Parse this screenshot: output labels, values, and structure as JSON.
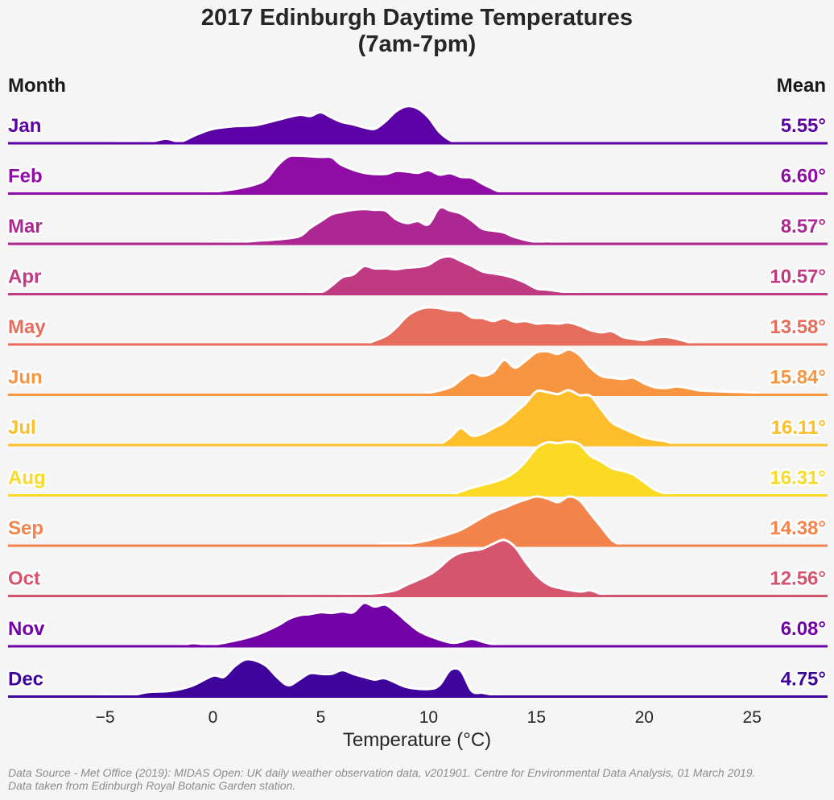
{
  "title_line1": "2017 Edinburgh Daytime Temperatures",
  "title_line2": "(7am-7pm)",
  "month_header": "Month",
  "mean_header": "Mean",
  "footnote_line1": "Data Source - Met Office (2019): MIDAS Open: UK daily weather observation data, v201901. Centre for Environmental Data Analysis, 01 March 2019.",
  "footnote_line2": "Data taken from Edinburgh Royal Botanic Garden station.",
  "chart_data": {
    "type": "area",
    "subtype": "ridgeline-kde",
    "xlabel": "Temperature (°C)",
    "xlim": [
      -9.5,
      28.5
    ],
    "xticks": [
      -5,
      0,
      5,
      10,
      15,
      20,
      25
    ],
    "xtick_labels": [
      "−5",
      "0",
      "5",
      "10",
      "15",
      "20",
      "25"
    ],
    "grid": false,
    "series": [
      {
        "name": "Jan",
        "mean_label": "5.55°",
        "color": "#5c01a6",
        "x": [
          -5.2,
          -4,
          -3,
          -2.2,
          -1.5,
          -0.8,
          0,
          1,
          2,
          3,
          4,
          4.5,
          5,
          5.5,
          6,
          6.5,
          7,
          7.5,
          8,
          8.5,
          9,
          9.5,
          10,
          10.5,
          11,
          11.5
        ],
        "density": [
          0,
          0.04,
          0.03,
          0.12,
          0.05,
          0.22,
          0.38,
          0.45,
          0.48,
          0.62,
          0.75,
          0.72,
          0.82,
          0.68,
          0.56,
          0.5,
          0.42,
          0.38,
          0.58,
          0.85,
          0.98,
          0.92,
          0.68,
          0.3,
          0.08,
          0
        ]
      },
      {
        "name": "Feb",
        "mean_label": "6.60°",
        "color": "#8f0da4",
        "x": [
          -0.8,
          0,
          1,
          2,
          2.5,
          3,
          3.5,
          4,
          5,
          5.5,
          6,
          7,
          8,
          8.5,
          9,
          9.5,
          10,
          10.5,
          11,
          11.5,
          12,
          12.5,
          13,
          13.5
        ],
        "density": [
          0,
          0.05,
          0.12,
          0.25,
          0.4,
          0.75,
          0.98,
          1.0,
          0.97,
          0.96,
          0.75,
          0.55,
          0.52,
          0.6,
          0.58,
          0.55,
          0.62,
          0.5,
          0.54,
          0.44,
          0.42,
          0.26,
          0.12,
          0
        ]
      },
      {
        "name": "Mar",
        "mean_label": "8.57°",
        "color": "#ad2793",
        "x": [
          -0.5,
          0,
          1,
          2,
          3,
          4,
          4.5,
          5,
          5.5,
          6,
          6.5,
          7,
          7.5,
          8,
          8.5,
          9,
          9.5,
          10,
          10.5,
          11,
          11.5,
          12,
          12.5,
          13,
          13.5,
          14,
          15,
          15.5,
          16,
          16.5
        ],
        "density": [
          0,
          0.02,
          0.04,
          0.08,
          0.12,
          0.2,
          0.42,
          0.6,
          0.78,
          0.85,
          0.9,
          0.92,
          0.9,
          0.88,
          0.65,
          0.55,
          0.6,
          0.52,
          0.95,
          0.88,
          0.8,
          0.62,
          0.4,
          0.35,
          0.3,
          0.18,
          0.05,
          0.07,
          0.02,
          0
        ]
      },
      {
        "name": "Apr",
        "mean_label": "10.57°",
        "color": "#c03a83",
        "x": [
          4,
          5,
          5.5,
          6,
          6.5,
          7,
          7.5,
          8,
          8.5,
          9,
          9.5,
          10,
          10.5,
          11,
          11.5,
          12,
          12.5,
          13,
          13.5,
          14,
          14.5,
          15,
          15.5,
          16,
          16.5,
          17
        ],
        "density": [
          0,
          0.05,
          0.22,
          0.45,
          0.52,
          0.74,
          0.68,
          0.68,
          0.66,
          0.7,
          0.72,
          0.78,
          0.95,
          1.0,
          0.88,
          0.75,
          0.6,
          0.55,
          0.5,
          0.42,
          0.3,
          0.15,
          0.12,
          0.08,
          0.04,
          0
        ]
      },
      {
        "name": "May",
        "mean_label": "13.58°",
        "color": "#e66c5c",
        "x": [
          7,
          8,
          8.5,
          9,
          9.5,
          10,
          10.5,
          11,
          11.5,
          12,
          12.5,
          13,
          13.5,
          14,
          14.5,
          15,
          15.5,
          16,
          16.5,
          17,
          17.5,
          18,
          18.5,
          19,
          19.5,
          20,
          20.5,
          21,
          21.5,
          22,
          22.5
        ],
        "density": [
          0,
          0.22,
          0.45,
          0.75,
          0.92,
          0.98,
          0.96,
          0.9,
          0.88,
          0.72,
          0.7,
          0.62,
          0.7,
          0.6,
          0.62,
          0.55,
          0.57,
          0.55,
          0.58,
          0.5,
          0.38,
          0.32,
          0.35,
          0.2,
          0.15,
          0.12,
          0.18,
          0.2,
          0.15,
          0.07,
          0
        ]
      },
      {
        "name": "Jun",
        "mean_label": "15.84°",
        "color": "#f89540",
        "x": [
          9.3,
          10,
          11,
          11.5,
          12,
          12.5,
          13,
          13.5,
          14,
          14.5,
          15,
          15.5,
          16,
          16.5,
          17,
          17.5,
          18,
          18.5,
          19,
          19.5,
          20,
          20.5,
          21,
          21.5,
          22,
          22.5,
          23,
          24,
          25,
          25.5
        ],
        "density": [
          0,
          0.05,
          0.2,
          0.4,
          0.58,
          0.5,
          0.6,
          0.92,
          0.72,
          0.9,
          1.12,
          1.15,
          1.08,
          1.2,
          1.05,
          0.72,
          0.5,
          0.45,
          0.42,
          0.45,
          0.3,
          0.2,
          0.18,
          0.22,
          0.18,
          0.12,
          0.1,
          0.08,
          0.06,
          0
        ]
      },
      {
        "name": "Jul",
        "mean_label": "16.11°",
        "color": "#febd2a",
        "x": [
          10.5,
          11,
          11.5,
          12,
          12.5,
          13,
          13.5,
          14,
          14.5,
          15,
          15.5,
          16,
          16.5,
          17,
          17.5,
          18,
          18.5,
          19,
          19.5,
          20,
          20.5,
          21,
          21.5
        ],
        "density": [
          0,
          0.2,
          0.45,
          0.25,
          0.3,
          0.45,
          0.6,
          0.85,
          1.1,
          1.42,
          1.4,
          1.35,
          1.45,
          1.32,
          1.3,
          0.95,
          0.6,
          0.45,
          0.32,
          0.2,
          0.14,
          0.1,
          0
        ]
      },
      {
        "name": "Aug",
        "mean_label": "16.31°",
        "color": "#fada24",
        "x": [
          11,
          12,
          13,
          13.5,
          14,
          14.5,
          15,
          15.5,
          16,
          16.5,
          17,
          17.5,
          18,
          18.5,
          19,
          19.5,
          20,
          20.5,
          21,
          21.5
        ],
        "density": [
          0,
          0.2,
          0.35,
          0.45,
          0.62,
          0.9,
          1.25,
          1.4,
          1.38,
          1.42,
          1.35,
          1.05,
          0.9,
          0.72,
          0.65,
          0.55,
          0.35,
          0.15,
          0.05,
          0
        ]
      },
      {
        "name": "Sep",
        "mean_label": "14.38°",
        "color": "#f2844b",
        "x": [
          7.5,
          8,
          9,
          10,
          11,
          11.5,
          12,
          12.5,
          13,
          13.5,
          14,
          14.5,
          15,
          15.5,
          16,
          16.5,
          17,
          17.5,
          18,
          18.5,
          19
        ],
        "density": [
          0,
          0.06,
          0.05,
          0.15,
          0.32,
          0.42,
          0.58,
          0.75,
          0.9,
          1.0,
          1.12,
          1.22,
          1.3,
          1.25,
          1.15,
          1.3,
          1.2,
          0.85,
          0.5,
          0.15,
          0
        ]
      },
      {
        "name": "Oct",
        "mean_label": "12.56°",
        "color": "#d5546e",
        "x": [
          3,
          5,
          7,
          8,
          8.5,
          9,
          10,
          10.5,
          11,
          11.5,
          12,
          12.5,
          13,
          13.5,
          14,
          14.5,
          15,
          15.5,
          16,
          17,
          17.5,
          18,
          18.5
        ],
        "density": [
          0,
          0.02,
          0.05,
          0.1,
          0.16,
          0.3,
          0.55,
          0.75,
          1.0,
          1.15,
          1.2,
          1.25,
          1.38,
          1.48,
          1.3,
          0.9,
          0.55,
          0.32,
          0.22,
          0.12,
          0.15,
          0.05,
          0
        ]
      },
      {
        "name": "Nov",
        "mean_label": "6.08°",
        "color": "#7201a8",
        "x": [
          -1.5,
          -1,
          0,
          1,
          2,
          3,
          3.5,
          4,
          4.5,
          5,
          5.5,
          6,
          6.5,
          7,
          7.5,
          8,
          8.5,
          9,
          9.5,
          10,
          11,
          11.5,
          12,
          12.5,
          13,
          13.5
        ],
        "density": [
          0,
          0.08,
          0.05,
          0.15,
          0.3,
          0.55,
          0.72,
          0.82,
          0.85,
          0.9,
          0.88,
          0.92,
          0.9,
          1.15,
          1.05,
          1.1,
          0.9,
          0.65,
          0.42,
          0.28,
          0.1,
          0.12,
          0.2,
          0.12,
          0.05,
          0
        ]
      },
      {
        "name": "Dec",
        "mean_label": "4.75°",
        "color": "#3e049c",
        "x": [
          -5.5,
          -5,
          -4,
          -3,
          -2,
          -1,
          0,
          0.5,
          1,
          1.5,
          2,
          2.5,
          3,
          3.5,
          4,
          4.5,
          5,
          5.5,
          6,
          6.5,
          7,
          7.5,
          8,
          9,
          10,
          10.5,
          11,
          11.5,
          12,
          12.5,
          13,
          13.5
        ],
        "density": [
          0,
          0.06,
          0.02,
          0.12,
          0.15,
          0.28,
          0.55,
          0.52,
          0.8,
          0.98,
          0.95,
          0.8,
          0.5,
          0.3,
          0.45,
          0.62,
          0.6,
          0.6,
          0.7,
          0.6,
          0.52,
          0.45,
          0.48,
          0.25,
          0.2,
          0.3,
          0.7,
          0.68,
          0.15,
          0.1,
          0.05,
          0
        ]
      }
    ]
  }
}
